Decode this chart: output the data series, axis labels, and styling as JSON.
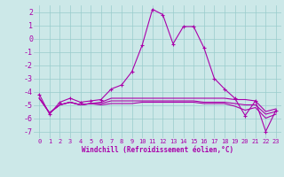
{
  "xlabel": "Windchill (Refroidissement éolien,°C)",
  "xlim": [
    -0.5,
    23.5
  ],
  "ylim": [
    -7.5,
    2.5
  ],
  "yticks": [
    2,
    1,
    0,
    -1,
    -2,
    -3,
    -4,
    -5,
    -6,
    -7
  ],
  "xticks": [
    0,
    1,
    2,
    3,
    4,
    5,
    6,
    7,
    8,
    9,
    10,
    11,
    12,
    13,
    14,
    15,
    16,
    17,
    18,
    19,
    20,
    21,
    22,
    23
  ],
  "bg_color": "#cce8e8",
  "line_color": "#aa00aa",
  "grid_color": "#99cccc",
  "lines": [
    {
      "x": [
        0,
        1,
        2,
        3,
        4,
        5,
        6,
        7,
        8,
        9,
        10,
        11,
        12,
        13,
        14,
        15,
        16,
        17,
        18,
        19,
        20,
        21,
        22,
        23
      ],
      "y": [
        -4.2,
        -5.7,
        -4.8,
        -4.5,
        -4.8,
        -4.7,
        -4.6,
        -3.8,
        -3.5,
        -2.5,
        -0.5,
        2.2,
        1.8,
        -0.4,
        0.9,
        0.9,
        -0.7,
        -3.0,
        -3.8,
        -4.5,
        -5.8,
        -4.7,
        -7.0,
        -5.4
      ],
      "marker": "+"
    },
    {
      "x": [
        0,
        1,
        2,
        3,
        4,
        5,
        6,
        7,
        8,
        9,
        10,
        11,
        12,
        13,
        14,
        15,
        16,
        17,
        18,
        19,
        20,
        21,
        22,
        23
      ],
      "y": [
        -4.5,
        -5.6,
        -5.0,
        -4.8,
        -5.0,
        -4.9,
        -4.8,
        -4.5,
        -4.5,
        -4.5,
        -4.5,
        -4.5,
        -4.5,
        -4.5,
        -4.5,
        -4.5,
        -4.5,
        -4.5,
        -4.5,
        -4.6,
        -4.6,
        -4.7,
        -5.5,
        -5.3
      ],
      "marker": null
    },
    {
      "x": [
        0,
        1,
        2,
        3,
        4,
        5,
        6,
        7,
        8,
        9,
        10,
        11,
        12,
        13,
        14,
        15,
        16,
        17,
        18,
        19,
        20,
        21,
        22,
        23
      ],
      "y": [
        -4.5,
        -5.6,
        -5.0,
        -4.8,
        -5.0,
        -4.9,
        -4.9,
        -4.7,
        -4.7,
        -4.7,
        -4.7,
        -4.7,
        -4.7,
        -4.7,
        -4.7,
        -4.7,
        -4.8,
        -4.8,
        -4.8,
        -4.9,
        -5.0,
        -5.0,
        -5.7,
        -5.5
      ],
      "marker": null
    },
    {
      "x": [
        0,
        1,
        2,
        3,
        4,
        5,
        6,
        7,
        8,
        9,
        10,
        11,
        12,
        13,
        14,
        15,
        16,
        17,
        18,
        19,
        20,
        21,
        22,
        23
      ],
      "y": [
        -4.5,
        -5.6,
        -5.0,
        -4.8,
        -5.0,
        -4.9,
        -5.0,
        -4.9,
        -4.9,
        -4.9,
        -4.8,
        -4.8,
        -4.8,
        -4.8,
        -4.8,
        -4.8,
        -4.9,
        -4.9,
        -4.9,
        -5.1,
        -5.4,
        -5.2,
        -6.0,
        -5.7
      ],
      "marker": null
    }
  ]
}
